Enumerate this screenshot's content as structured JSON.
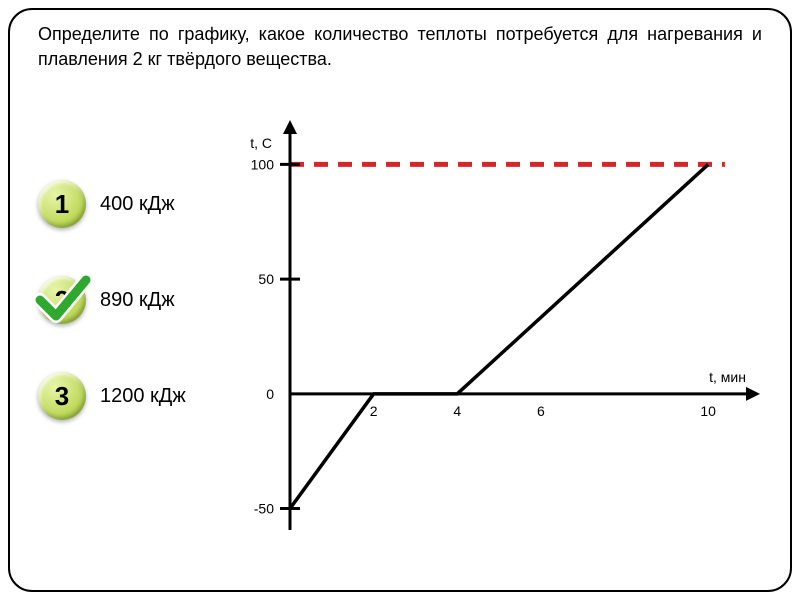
{
  "question_text": "Определите по графику, какое количество теплоты потребуется для нагревания и плавления 2 кг твёрдого вещества.",
  "options": [
    {
      "num": "1",
      "label": "400 кДж",
      "correct": false
    },
    {
      "num": "2",
      "label": "890 кДж",
      "correct": true
    },
    {
      "num": "3",
      "label": "1200 кДж",
      "correct": false
    }
  ],
  "option_badge": {
    "bg_gradient_top": "#e8f5a8",
    "bg_gradient_bottom": "#a6ca2e",
    "text_color": "#000000",
    "check_color": "#2fa82f"
  },
  "chart": {
    "type": "line",
    "y_axis_label": "t, C",
    "x_axis_label": "t, мин",
    "axis_color": "#000000",
    "axis_width": 3,
    "line_color": "#000000",
    "line_width": 3.5,
    "dashed_line_color": "#d62728",
    "dashed_line_width": 5,
    "dashed_pattern": "14 10",
    "background_color": "#ffffff",
    "y_ticks": [
      {
        "value": -50,
        "label": "-50"
      },
      {
        "value": 0,
        "label": "0"
      },
      {
        "value": 50,
        "label": "50"
      },
      {
        "value": 100,
        "label": "100"
      }
    ],
    "x_ticks": [
      {
        "value": 2,
        "label": "2"
      },
      {
        "value": 4,
        "label": "4"
      },
      {
        "value": 6,
        "label": "6"
      },
      {
        "value": 10,
        "label": "10"
      }
    ],
    "xlim": [
      0,
      11
    ],
    "ylim": [
      -55,
      115
    ],
    "data_points": [
      {
        "x": 0,
        "y": -50
      },
      {
        "x": 2,
        "y": 0
      },
      {
        "x": 4,
        "y": 0
      },
      {
        "x": 10,
        "y": 100
      }
    ],
    "dashed_y": 100,
    "label_fontsize": 14,
    "tick_fontsize": 14
  }
}
